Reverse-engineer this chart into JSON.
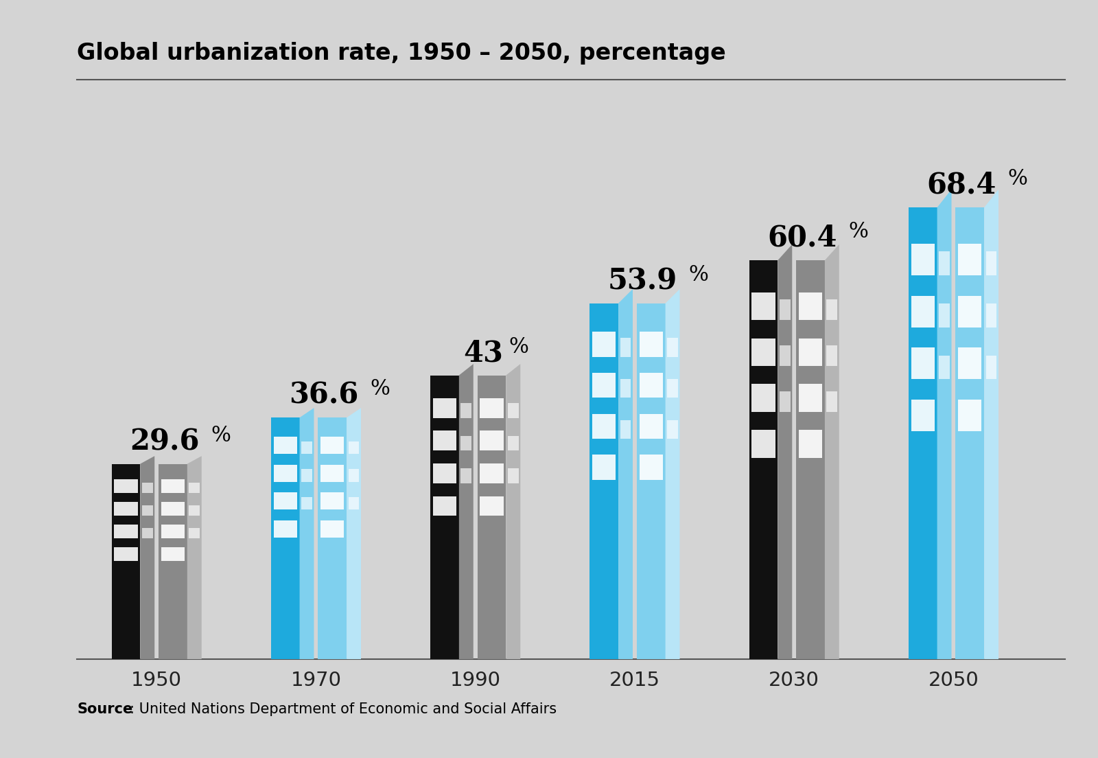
{
  "title": "Global urbanization rate, 1950 – 2050, percentage",
  "source_bold": "Source",
  "source_text": ": United Nations Department of Economic and Social Affairs",
  "years": [
    "1950",
    "1970",
    "1990",
    "2015",
    "2030",
    "2050"
  ],
  "values": [
    29.6,
    36.6,
    43.0,
    53.9,
    60.4,
    68.4
  ],
  "label_main": [
    "29.6",
    "36.6",
    "43",
    "53.9",
    "60.4",
    "68.4"
  ],
  "background_color": "#d4d4d4",
  "colors": {
    "black_front": "#111111",
    "black_side": "#7a7a7a",
    "gray_front": "#999999",
    "gray_side": "#bbbbbb",
    "blue_front": "#1eaadd",
    "blue_side": "#7fd0ee",
    "lightblue_front": "#7fd0ee",
    "lightblue_side": "#b8e5f5",
    "white_win": "#ffffff"
  },
  "ylim_max": 78,
  "title_fontsize": 24,
  "label_fontsize_main": 30,
  "label_fontsize_pct": 22,
  "tick_fontsize": 21,
  "source_fontsize": 15
}
